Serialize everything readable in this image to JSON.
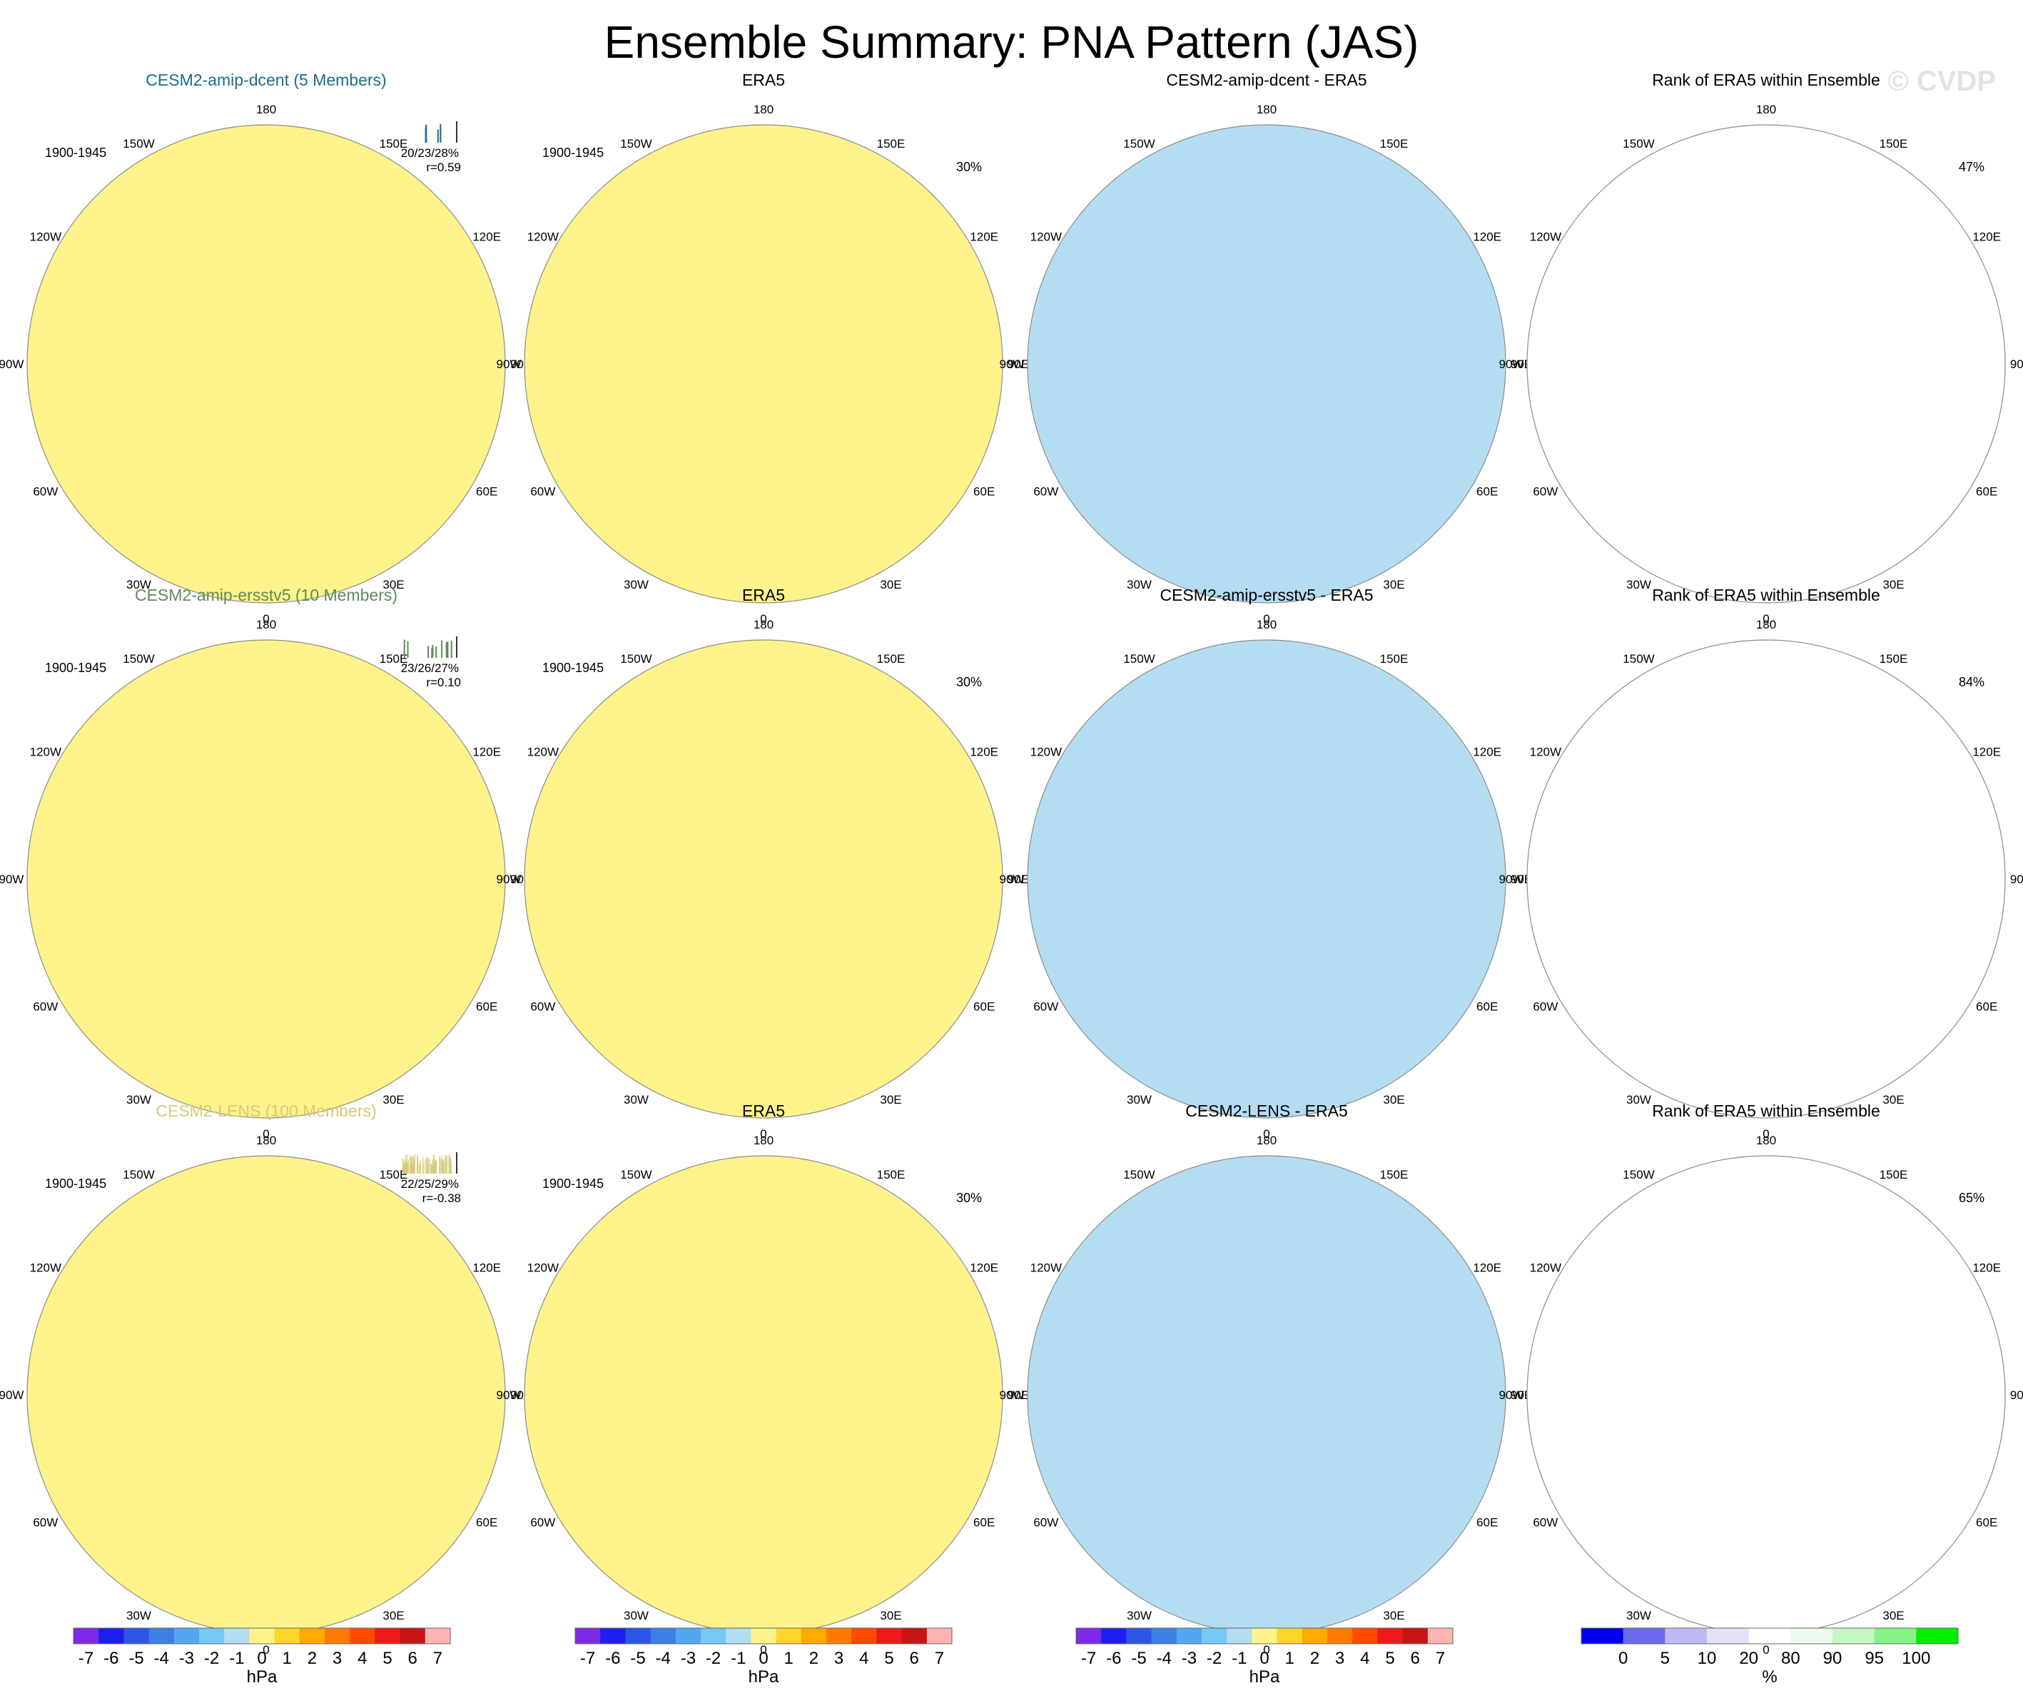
{
  "title": "Ensemble Summary: PNA Pattern (JAS)",
  "watermark": "© CVDP",
  "colors": {
    "ocean_blue": "#b4ddf2",
    "mid_blue": "#72c4ee",
    "pale_yellow": "#fff38c",
    "gold": "#ffd52b",
    "orange": "#ffaa00",
    "rank_blue": "#0000ee",
    "rank_light_blue": "#bcbcf5",
    "rank_pale_blue": "#e2e2fa",
    "rank_green": "#00ee00",
    "rank_light_green": "#c5f7c5",
    "rank_pale_green": "#ecfbec",
    "dcent": "#1a6e8a",
    "ersstv5": "#5b8c5a",
    "lens": "#d7c97a"
  },
  "lon_labels": [
    "180",
    "150E",
    "120E",
    "90E",
    "60E",
    "30E",
    "0",
    "30W",
    "60W",
    "90W",
    "120W",
    "150W"
  ],
  "chart_data": [
    {
      "type": "heatmap",
      "projection": "north-polar-stereographic",
      "title": "CESM2-amip-dcent (5 Members)",
      "title_color": "dcent",
      "period": "1900-1945",
      "stats": "20/23/28%",
      "corr": "r=0.59",
      "members": 5,
      "units": "hPa",
      "pattern": "dcent"
    },
    {
      "type": "heatmap",
      "projection": "north-polar-stereographic",
      "title": "ERA5",
      "period": "1900-1945",
      "pct": "30%",
      "units": "hPa",
      "pattern": "era5"
    },
    {
      "type": "heatmap",
      "projection": "north-polar-stereographic",
      "title": "CESM2-amip-dcent - ERA5",
      "units": "hPa",
      "pattern": "diff1"
    },
    {
      "type": "heatmap",
      "projection": "north-polar-stereographic",
      "title": "Rank of ERA5 within Ensemble",
      "pct": "47%",
      "units": "%",
      "pattern": "rank1"
    },
    {
      "type": "heatmap",
      "projection": "north-polar-stereographic",
      "title": "CESM2-amip-ersstv5 (10 Members)",
      "title_color": "ersstv5",
      "period": "1900-1945",
      "stats": "23/26/27%",
      "corr": "r=0.10",
      "members": 10,
      "units": "hPa",
      "pattern": "ersst"
    },
    {
      "type": "heatmap",
      "projection": "north-polar-stereographic",
      "title": "ERA5",
      "period": "1900-1945",
      "pct": "30%",
      "units": "hPa",
      "pattern": "era5"
    },
    {
      "type": "heatmap",
      "projection": "north-polar-stereographic",
      "title": "CESM2-amip-ersstv5 - ERA5",
      "units": "hPa",
      "pattern": "diff2"
    },
    {
      "type": "heatmap",
      "projection": "north-polar-stereographic",
      "title": "Rank of ERA5 within Ensemble",
      "pct": "84%",
      "units": "%",
      "pattern": "rank2"
    },
    {
      "type": "heatmap",
      "projection": "north-polar-stereographic",
      "title": "CESM2-LENS (100 Members)",
      "title_color": "lens",
      "period": "1900-1945",
      "stats": "22/25/29%",
      "corr": "r=-0.38",
      "members": 100,
      "units": "hPa",
      "pattern": "lens"
    },
    {
      "type": "heatmap",
      "projection": "north-polar-stereographic",
      "title": "ERA5",
      "period": "1900-1945",
      "pct": "30%",
      "units": "hPa",
      "pattern": "era5"
    },
    {
      "type": "heatmap",
      "projection": "north-polar-stereographic",
      "title": "CESM2-LENS - ERA5",
      "units": "hPa",
      "pattern": "diff3"
    },
    {
      "type": "heatmap",
      "projection": "north-polar-stereographic",
      "title": "Rank of ERA5 within Ensemble",
      "pct": "65%",
      "units": "%",
      "pattern": "rank3"
    }
  ],
  "colorbars": [
    {
      "units": "hPa",
      "colors": [
        "#7d2ae8",
        "#1e1ef0",
        "#2d55e6",
        "#3c7fe6",
        "#52a8f0",
        "#78c8f5",
        "#b4ddf2",
        "#fff38c",
        "#ffd52b",
        "#ffaa00",
        "#ff7a00",
        "#ff4a00",
        "#ee1a1a",
        "#c81414",
        "#ffb4b4"
      ],
      "tick_labels": [
        "-7",
        "-6",
        "-5",
        "-4",
        "-3",
        "-2",
        "-1",
        "0",
        "1",
        "2",
        "3",
        "4",
        "5",
        "6",
        "7"
      ]
    },
    {
      "units": "hPa",
      "colors": [
        "#7d2ae8",
        "#1e1ef0",
        "#2d55e6",
        "#3c7fe6",
        "#52a8f0",
        "#78c8f5",
        "#b4ddf2",
        "#fff38c",
        "#ffd52b",
        "#ffaa00",
        "#ff7a00",
        "#ff4a00",
        "#ee1a1a",
        "#c81414",
        "#ffb4b4"
      ],
      "tick_labels": [
        "-7",
        "-6",
        "-5",
        "-4",
        "-3",
        "-2",
        "-1",
        "0",
        "1",
        "2",
        "3",
        "4",
        "5",
        "6",
        "7"
      ]
    },
    {
      "units": "hPa",
      "colors": [
        "#7d2ae8",
        "#1e1ef0",
        "#2d55e6",
        "#3c7fe6",
        "#52a8f0",
        "#78c8f5",
        "#b4ddf2",
        "#fff38c",
        "#ffd52b",
        "#ffaa00",
        "#ff7a00",
        "#ff4a00",
        "#ee1a1a",
        "#c81414",
        "#ffb4b4"
      ],
      "tick_labels": [
        "-7",
        "-6",
        "-5",
        "-4",
        "-3",
        "-2",
        "-1",
        "0",
        "1",
        "2",
        "3",
        "4",
        "5",
        "6",
        "7"
      ]
    },
    {
      "units": "%",
      "colors": [
        "#0000ee",
        "#6b6bf2",
        "#bcbcf5",
        "#e2e2fa",
        "#ffffff",
        "#ecfbec",
        "#c5f7c5",
        "#86f586",
        "#00ee00"
      ],
      "tick_labels": [
        "0",
        "5",
        "10",
        "20",
        "80",
        "90",
        "95",
        "100"
      ]
    }
  ]
}
